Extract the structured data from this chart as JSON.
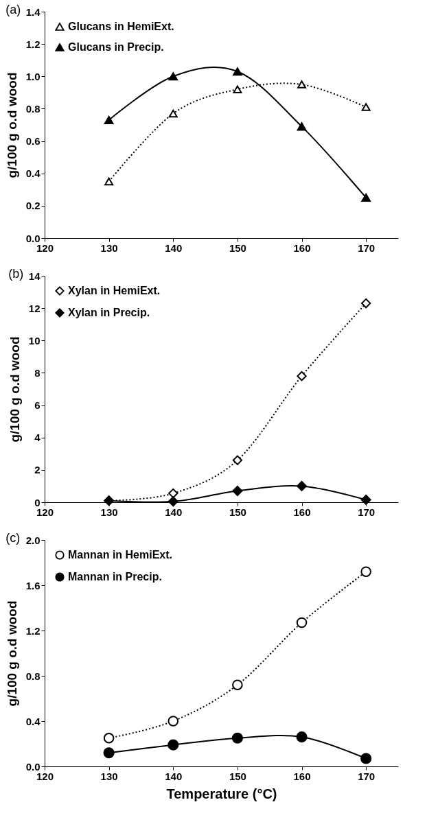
{
  "chart_data": [
    {
      "type": "line",
      "title": "(a)",
      "ylabel": "g/100 g o.d wood",
      "x": [
        130,
        140,
        150,
        160,
        170
      ],
      "xlim": [
        120,
        175
      ],
      "xticks": [
        120,
        130,
        140,
        150,
        160,
        170
      ],
      "ylim": [
        0,
        1.4
      ],
      "yticks": [
        {
          "value": 0,
          "label": "0.0"
        },
        0.2,
        0.4,
        0.6,
        0.8,
        {
          "value": 1,
          "label": "1.0"
        },
        1.2,
        1.4
      ],
      "grid": false,
      "legend": "top left",
      "marker": "triangle",
      "series": [
        {
          "name": "Glucans in HemiExt.",
          "color": "#000000",
          "line_style": "dotted",
          "values": [
            0.35,
            0.77,
            0.92,
            0.95,
            0.81
          ]
        },
        {
          "name": "Glucans in Precip.",
          "color": "#000000",
          "line_style": "solid",
          "values": [
            0.73,
            1.0,
            1.03,
            0.69,
            0.25
          ]
        }
      ]
    },
    {
      "type": "line",
      "title": "(b)",
      "ylabel": "g/100 g o.d wood",
      "x": [
        130,
        140,
        150,
        160,
        170
      ],
      "xlim": [
        120,
        175
      ],
      "xticks": [
        120,
        130,
        140,
        150,
        160,
        170
      ],
      "ylim": [
        0,
        14
      ],
      "yticks": [
        0,
        2,
        4,
        6,
        8,
        10,
        12,
        14
      ],
      "grid": false,
      "legend": "top left",
      "marker": "diamond",
      "series": [
        {
          "name": "Xylan in HemiExt.",
          "color": "#000000",
          "line_style": "dotted",
          "values": [
            0.1,
            0.55,
            2.6,
            7.8,
            12.3
          ]
        },
        {
          "name": "Xylan in Precip.",
          "color": "#000000",
          "line_style": "solid",
          "values": [
            0.1,
            0.05,
            0.7,
            1.0,
            0.15
          ]
        }
      ]
    },
    {
      "type": "line",
      "title": "(c)",
      "xlabel": "Temperature (°C)",
      "ylabel": "g/100 g o.d wood",
      "x": [
        130,
        140,
        150,
        160,
        170
      ],
      "xlim": [
        120,
        175
      ],
      "xticks": [
        120,
        130,
        140,
        150,
        160,
        170
      ],
      "ylim": [
        0,
        2
      ],
      "yticks": [
        {
          "value": 0,
          "label": "0.0"
        },
        0.4,
        0.8,
        1.2,
        1.6,
        {
          "value": 2,
          "label": "2.0"
        }
      ],
      "grid": false,
      "legend": "top left",
      "marker": "circle",
      "series": [
        {
          "name": "Mannan in HemiExt.",
          "color": "#000000",
          "line_style": "dotted",
          "values": [
            0.25,
            0.4,
            0.72,
            1.27,
            1.72
          ]
        },
        {
          "name": "Mannan in Precip.",
          "color": "#000000",
          "line_style": "solid",
          "values": [
            0.12,
            0.19,
            0.25,
            0.26,
            0.07
          ]
        }
      ]
    }
  ]
}
